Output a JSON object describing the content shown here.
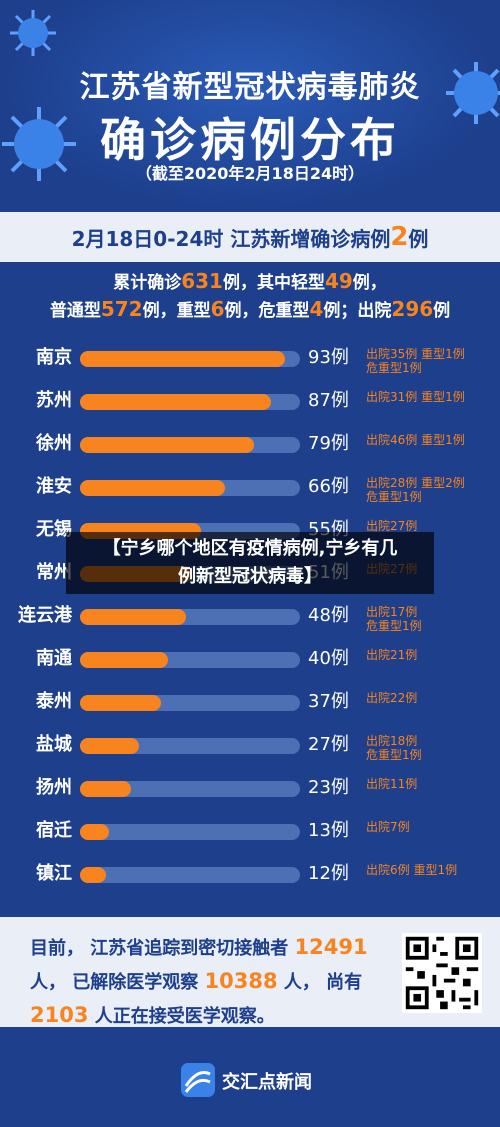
{
  "header": {
    "title_line1": "江苏省新型冠状病毒肺炎",
    "title_line2": "确诊病例分布",
    "title_line3": "（截至2020年2月18日24时）"
  },
  "band": {
    "prefix": "2月18日0-24时  江苏新增确诊病例",
    "num": "2",
    "suffix": "例"
  },
  "summary": {
    "line1": {
      "p1": "累计确诊",
      "n1": "631",
      "p2": "例，其中轻型",
      "n2": "49",
      "p3": "例，"
    },
    "line2": {
      "p1": "普通型",
      "n1": "572",
      "p2": "例，重型",
      "n2": "6",
      "p3": "例，危重型",
      "n3": "4",
      "p4": "例；出院",
      "n4": "296",
      "p5": "例"
    }
  },
  "overlay": {
    "line1": "【宁乡哪个地区有疫情病例,宁乡有几",
    "line2": "例新型冠状病毒】"
  },
  "chart_data": {
    "type": "bar",
    "categories": [
      "南京",
      "苏州",
      "徐州",
      "淮安",
      "无锡",
      "常州",
      "连云港",
      "南通",
      "泰州",
      "盐城",
      "扬州",
      "宿迁",
      "镇江"
    ],
    "values": [
      93,
      87,
      79,
      66,
      55,
      51,
      48,
      40,
      37,
      27,
      23,
      13,
      12
    ],
    "count_labels": [
      "93例",
      "87例",
      "79例",
      "66例",
      "55例",
      "51例",
      "48例",
      "40例",
      "37例",
      "27例",
      "23例",
      "13例",
      "12例"
    ],
    "notes": [
      [
        "出院35例 重型1例",
        "危重型1例"
      ],
      [
        "出院31例 重型1例"
      ],
      [
        "出院46例 重型1例"
      ],
      [
        "出院28例 重型2例",
        "危重型1例"
      ],
      [
        "出院27例"
      ],
      [
        "出院27例"
      ],
      [
        "出院17例",
        "危重型1例"
      ],
      [
        "出院21例"
      ],
      [
        "出院22例"
      ],
      [
        "出院18例",
        "危重型1例"
      ],
      [
        "出院11例"
      ],
      [
        "出院7例"
      ],
      [
        "出院6例  重型1例"
      ]
    ],
    "xlim": [
      0,
      100
    ]
  },
  "bottom": {
    "t1": "目前， 江苏省追踪到密切接触者 ",
    "n1": "12491",
    "t2": "人， 已解除医学观察 ",
    "n2": "10388",
    "t3": " 人， 尚有",
    "n3": "2103",
    "t4": " 人正在接受医学观察。"
  },
  "footer": {
    "brand": "交汇点新闻"
  },
  "colors": {
    "background": "#1d3f8c",
    "accent": "#f7841e",
    "track": "#4d6fb3",
    "band": "#e9eef7"
  }
}
